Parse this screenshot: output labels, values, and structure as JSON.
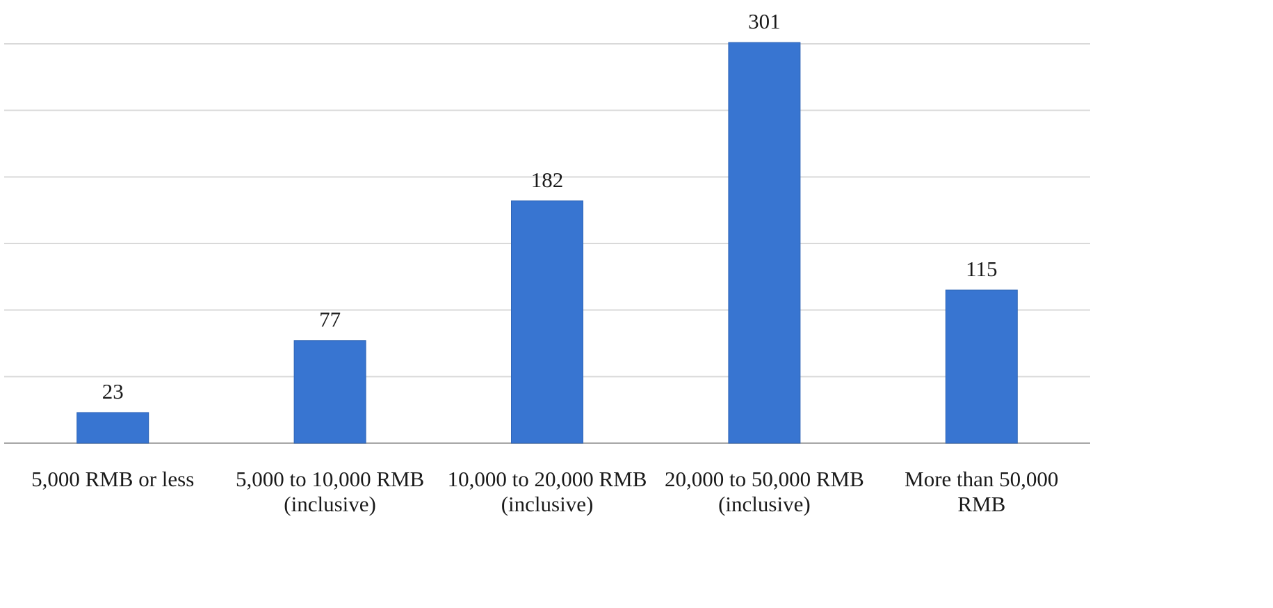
{
  "chart_data": {
    "type": "bar",
    "categories": [
      [
        "5,000 RMB or less"
      ],
      [
        "5,000 to 10,000 RMB",
        "(inclusive)"
      ],
      [
        "10,000 to 20,000 RMB",
        "(inclusive)"
      ],
      [
        "20,000 to 50,000 RMB",
        "(inclusive)"
      ],
      [
        "More than 50,000",
        "RMB"
      ]
    ],
    "values": [
      23,
      77,
      182,
      301,
      115
    ],
    "data_labels": [
      "23",
      "77",
      "182",
      "301",
      "115"
    ],
    "ylim": [
      0,
      300
    ],
    "y_gridline_step": 50,
    "grid": true,
    "show_y_axis_labels": false,
    "bar_color": "#3875d1",
    "gridline_color": "#d9d9d9",
    "baseline_color": "#a6a6a6",
    "text_color": "#1a1a1a"
  }
}
